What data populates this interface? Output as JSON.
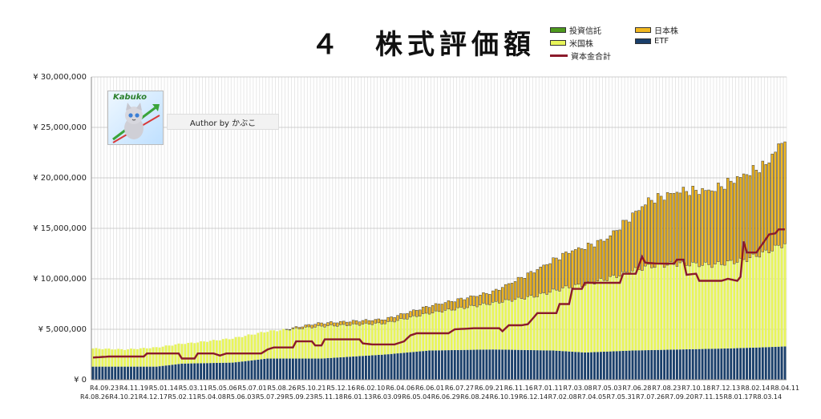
{
  "chart_data": {
    "type": "bar",
    "stacked": true,
    "title": "４　株式評価額",
    "ylim": [
      0,
      30000000
    ],
    "y_ticks": [
      "¥ 0",
      "¥ 5,000,000",
      "¥ 10,000,000",
      "¥ 15,000,000",
      "¥ 20,000,000",
      "¥ 25,000,000",
      "¥ 30,000,000"
    ],
    "y_tick_values": [
      0,
      5000000,
      10000000,
      15000000,
      20000000,
      25000000,
      30000000
    ],
    "grid": true,
    "legend_position": "top-right",
    "x_labels_row1": [
      "R4.09.23",
      "R4.11.19",
      "R5.01.14",
      "R5.03.11",
      "R5.05.06",
      "R5.07.01",
      "R5.08.26",
      "R5.10.21",
      "R5.12.16",
      "R6.02.10",
      "R6.04.06",
      "R6.06.01",
      "R6.07.27",
      "R6.09.21",
      "R6.11.16",
      "R7.01.11",
      "R7.03.08",
      "R7.05.03",
      "R7.06.28",
      "R7.08.23",
      "R7.10.18",
      "R7.12.13",
      "R8.02.14",
      "R8.04.11"
    ],
    "x_labels_row2": [
      "R4.08.26",
      "R4.10.21",
      "R4.12.17",
      "R5.02.11",
      "R5.04.08",
      "R5.06.03",
      "R5.07.29",
      "R5.09.23",
      "R5.11.18",
      "R6.01.13",
      "R6.03.09",
      "R6.05.04",
      "R6.06.29",
      "R6.08.24",
      "R6.10.19",
      "R6.12.14",
      "R7.02.08",
      "R7.04.05",
      "R7.05.31",
      "R7.07.26",
      "R7.09.20",
      "R7.11.15",
      "R8.01.17",
      "R8.03.14"
    ],
    "series_colors": {
      "投資信託": "#4e9a1e",
      "日本株": "#f2b820",
      "米国株": "#e8f55a",
      "ETF": "#1a3f6b",
      "資本金合計": "#8b1a2b"
    },
    "legend": [
      {
        "name": "投資信託",
        "kind": "bar",
        "color": "#4e9a1e"
      },
      {
        "name": "日本株",
        "kind": "bar",
        "color": "#f2b820"
      },
      {
        "name": "米国株",
        "kind": "bar",
        "color": "#e8f55a"
      },
      {
        "name": "ETF",
        "kind": "bar",
        "color": "#1a3f6b"
      },
      {
        "name": "資本金合計",
        "kind": "line",
        "color": "#8b1a2b"
      }
    ],
    "anchors": {
      "etf": [
        [
          0,
          1300000
        ],
        [
          10,
          1300000
        ],
        [
          20,
          1300000
        ],
        [
          28,
          1600000
        ],
        [
          44,
          1700000
        ],
        [
          55,
          2100000
        ],
        [
          72,
          2100000
        ],
        [
          92,
          2500000
        ],
        [
          106,
          2900000
        ],
        [
          126,
          3000000
        ],
        [
          145,
          2900000
        ],
        [
          155,
          2700000
        ],
        [
          170,
          2900000
        ],
        [
          185,
          3000000
        ],
        [
          200,
          3100000
        ],
        [
          210,
          3200000
        ],
        [
          218,
          3300000
        ]
      ],
      "us": [
        [
          0,
          1800000
        ],
        [
          10,
          1700000
        ],
        [
          20,
          1900000
        ],
        [
          30,
          2000000
        ],
        [
          44,
          2400000
        ],
        [
          55,
          2700000
        ],
        [
          72,
          3200000
        ],
        [
          92,
          3100000
        ],
        [
          106,
          3700000
        ],
        [
          126,
          4600000
        ],
        [
          140,
          5400000
        ],
        [
          150,
          6400000
        ],
        [
          162,
          7200000
        ],
        [
          175,
          8300000
        ],
        [
          185,
          8500000
        ],
        [
          195,
          8300000
        ],
        [
          205,
          8700000
        ],
        [
          212,
          9400000
        ],
        [
          218,
          10200000
        ]
      ],
      "jp": [
        [
          0,
          0
        ],
        [
          60,
          0
        ],
        [
          70,
          300000
        ],
        [
          92,
          400000
        ],
        [
          106,
          700000
        ],
        [
          126,
          1100000
        ],
        [
          140,
          2600000
        ],
        [
          150,
          3500000
        ],
        [
          162,
          4000000
        ],
        [
          175,
          6500000
        ],
        [
          185,
          7200000
        ],
        [
          195,
          7400000
        ],
        [
          205,
          8400000
        ],
        [
          212,
          8700000
        ],
        [
          218,
          10500000
        ]
      ],
      "capital": [
        [
          0,
          2200000
        ],
        [
          5,
          2300000
        ],
        [
          16,
          2300000
        ],
        [
          17,
          2600000
        ],
        [
          27,
          2600000
        ],
        [
          28,
          2100000
        ],
        [
          32,
          2100000
        ],
        [
          33,
          2600000
        ],
        [
          38,
          2600000
        ],
        [
          40,
          2400000
        ],
        [
          42,
          2600000
        ],
        [
          53,
          2600000
        ],
        [
          55,
          3000000
        ],
        [
          57,
          3200000
        ],
        [
          63,
          3200000
        ],
        [
          64,
          3800000
        ],
        [
          69,
          3800000
        ],
        [
          70,
          3400000
        ],
        [
          72,
          3400000
        ],
        [
          73,
          4000000
        ],
        [
          84,
          4000000
        ],
        [
          85,
          3600000
        ],
        [
          88,
          3500000
        ],
        [
          95,
          3500000
        ],
        [
          98,
          3800000
        ],
        [
          100,
          4400000
        ],
        [
          102,
          4600000
        ],
        [
          108,
          4600000
        ],
        [
          112,
          4600000
        ],
        [
          114,
          5000000
        ],
        [
          120,
          5100000
        ],
        [
          128,
          5100000
        ],
        [
          129,
          4800000
        ],
        [
          131,
          5400000
        ],
        [
          135,
          5400000
        ],
        [
          137,
          5500000
        ],
        [
          140,
          6600000
        ],
        [
          146,
          6600000
        ],
        [
          147,
          7500000
        ],
        [
          150,
          7500000
        ],
        [
          151,
          9000000
        ],
        [
          154,
          9000000
        ],
        [
          155,
          9600000
        ],
        [
          166,
          9600000
        ],
        [
          167,
          10500000
        ],
        [
          171,
          10500000
        ],
        [
          173,
          12200000
        ],
        [
          174,
          11600000
        ],
        [
          178,
          11500000
        ],
        [
          183,
          11500000
        ],
        [
          184,
          11900000
        ],
        [
          186,
          11900000
        ],
        [
          187,
          10400000
        ],
        [
          190,
          10500000
        ],
        [
          191,
          9800000
        ],
        [
          196,
          9800000
        ],
        [
          198,
          9800000
        ],
        [
          200,
          10000000
        ],
        [
          203,
          9800000
        ],
        [
          204,
          10200000
        ],
        [
          205,
          13700000
        ],
        [
          206,
          12600000
        ],
        [
          209,
          12600000
        ],
        [
          211,
          13500000
        ],
        [
          213,
          14400000
        ],
        [
          215,
          14500000
        ],
        [
          216,
          14900000
        ],
        [
          218,
          14900000
        ]
      ]
    },
    "n_bars": 219
  }
}
